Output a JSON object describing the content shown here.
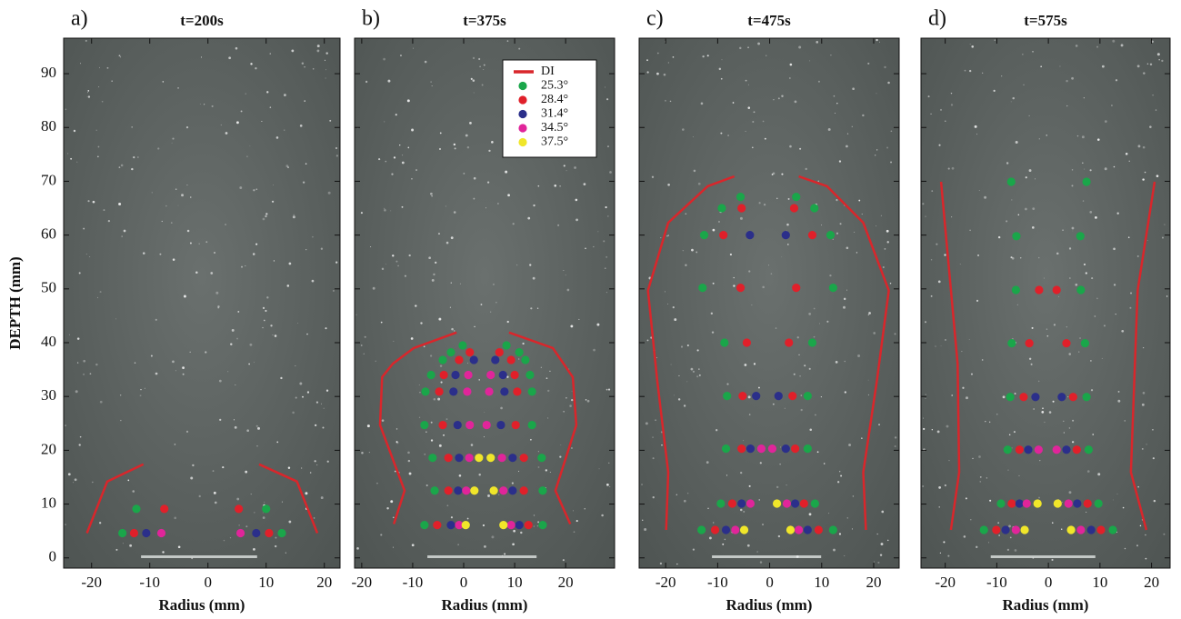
{
  "chart_data": [
    {
      "type": "scatter",
      "panel_label": "a)",
      "title": "t=200s",
      "xlabel": "Radius (mm)",
      "ylabel": "DEPTH (mm)",
      "xlim": [
        -24.8,
        22.7
      ],
      "ylim": [
        -1.9,
        96.6
      ],
      "xticks": [
        -20,
        -10,
        0,
        10,
        20
      ],
      "yticks": [
        0,
        10,
        20,
        30,
        40,
        50,
        60,
        70,
        80,
        90
      ],
      "series": [
        {
          "type": "line",
          "color": "#d9262b",
          "x": [
            -20.8,
            -17.3,
            -11.1,
            null,
            8.8,
            15.3,
            18.8
          ],
          "values": [
            4.6,
            14.2,
            17.4,
            null,
            17.4,
            14.2,
            4.6
          ]
        },
        {
          "color": "#1aa64a",
          "x": [
            -12.3,
            10,
            -14.7,
            12.7
          ],
          "values": [
            9.1,
            9.1,
            4.6,
            4.6
          ]
        },
        {
          "color": "#e0202a",
          "x": [
            -7.5,
            5.3,
            -12.7,
            10.5
          ],
          "values": [
            9.1,
            9.1,
            4.6,
            4.6
          ]
        },
        {
          "color": "#2b2f8a",
          "x": [
            -10.6,
            8.3
          ],
          "values": [
            4.6,
            4.6
          ]
        },
        {
          "color": "#e0259a",
          "x": [
            -8.0,
            5.6
          ],
          "values": [
            4.6,
            4.6
          ]
        }
      ]
    },
    {
      "type": "scatter",
      "panel_label": "b)",
      "title": "t=375s",
      "xlabel": "Radius (mm)",
      "legend": "upper right",
      "xlim": [
        -21.4,
        29.6
      ],
      "ylim": [
        -1.9,
        96.6
      ],
      "xticks": [
        -20,
        -10,
        0,
        10,
        20
      ],
      "yticks": [
        0,
        10,
        20,
        30,
        40,
        50,
        60,
        70,
        80,
        90
      ],
      "series": [
        {
          "type": "line",
          "name": "DI",
          "color": "#d9262b",
          "x": [
            -13.7,
            -11.6,
            -16.4,
            -16,
            -13.9,
            -9.8,
            -1.4,
            null,
            8.9,
            17.5,
            21.4,
            22.1,
            18,
            20.9
          ],
          "values": [
            6.3,
            12.5,
            24.7,
            33.6,
            36.1,
            39,
            41.9,
            null,
            41.9,
            39,
            33.6,
            24.7,
            12.5,
            6.3
          ]
        },
        {
          "name": "25.3°",
          "color": "#1aa64a",
          "x": [
            -0.2,
            8.4,
            -2.5,
            10.9,
            -4.1,
            12.1,
            -6.4,
            13,
            -7.5,
            13.4,
            -7.7,
            13.4,
            -6.1,
            15.3,
            -5.7,
            15.5,
            -7.7,
            15.5
          ],
          "values": [
            39.5,
            39.5,
            38.2,
            38.2,
            36.8,
            36.8,
            34,
            34,
            30.9,
            30.9,
            24.7,
            24.7,
            18.6,
            18.6,
            12.5,
            12.5,
            6.1,
            6.1
          ]
        },
        {
          "name": "28.4°",
          "color": "#e0202a",
          "x": [
            1.2,
            7,
            -0.9,
            9.3,
            -3.9,
            10,
            -4.8,
            10.5,
            -4.1,
            10.2,
            -3,
            11.8,
            -3,
            11.8,
            -5.2,
            12.7
          ],
          "values": [
            38.2,
            38.2,
            36.8,
            36.8,
            34,
            34,
            30.9,
            30.9,
            24.7,
            24.7,
            18.6,
            18.6,
            12.5,
            12.5,
            6.1,
            6.1
          ]
        },
        {
          "name": "31.4°",
          "color": "#2b2f8a",
          "x": [
            2,
            6.2,
            -1.6,
            7.7,
            -2,
            8,
            -1.2,
            7.3,
            -0.9,
            9.6,
            -1.1,
            9.6,
            -2.5,
            10.9
          ],
          "values": [
            36.8,
            36.8,
            34,
            34,
            30.9,
            30.9,
            24.7,
            24.7,
            18.6,
            18.6,
            12.5,
            12.5,
            6.1,
            6.1
          ]
        },
        {
          "name": "34.5°",
          "color": "#e0259a",
          "x": [
            0.9,
            5.3,
            0.7,
            5,
            1.2,
            4.5,
            1.1,
            7.5,
            0.5,
            7.8,
            -0.9,
            9.3
          ],
          "values": [
            34,
            34,
            30.9,
            30.9,
            24.7,
            24.7,
            18.6,
            18.6,
            12.5,
            12.5,
            6.1,
            6.1
          ]
        },
        {
          "name": "37.5°",
          "color": "#f0e62a",
          "x": [
            3,
            5.3,
            2.1,
            5.9,
            0.4,
            7.8
          ],
          "values": [
            18.6,
            18.6,
            12.5,
            12.5,
            6.1,
            6.1
          ]
        }
      ]
    },
    {
      "type": "scatter",
      "panel_label": "c)",
      "title": "t=475s",
      "xlabel": "Radius (mm)",
      "xlim": [
        -25.1,
        24.9
      ],
      "ylim": [
        -1.9,
        96.6
      ],
      "xticks": [
        -20,
        -10,
        0,
        10,
        20
      ],
      "yticks": [
        0,
        10,
        20,
        30,
        40,
        50,
        60,
        70,
        80,
        90
      ],
      "series": [
        {
          "type": "line",
          "color": "#d9262b",
          "x": [
            -6.8,
            -11.9,
            -19.5,
            -23.4,
            -21.6,
            -19.5,
            -19.9,
            null,
            5.6,
            11,
            18,
            22.9,
            20.6,
            18,
            18.5
          ],
          "values": [
            70.9,
            69.1,
            62.3,
            49.7,
            32.8,
            15.9,
            5.2,
            null,
            70.9,
            69.1,
            62.3,
            49.7,
            32.8,
            15.9,
            5.2
          ]
        },
        {
          "color": "#1aa64a",
          "x": [
            -5.6,
            5.1,
            -9.2,
            8.6,
            -12.6,
            11.7,
            -12.9,
            12.2,
            -8.7,
            8.2,
            -8.2,
            7.3,
            -8.4,
            7.3,
            -9.4,
            8.7,
            -13.1,
            12.2
          ],
          "values": [
            67.1,
            67.1,
            65,
            65,
            60,
            60,
            50.2,
            50.2,
            40,
            40,
            30.1,
            30.1,
            20.3,
            20.3,
            10.1,
            10.1,
            5.2,
            5.2
          ]
        },
        {
          "color": "#e0202a",
          "x": [
            -5.4,
            4.7,
            -8.9,
            8.2,
            -5.6,
            5.1,
            -4.4,
            3.7,
            -5.2,
            4.4,
            -5.4,
            4.9,
            -7.2,
            6.6,
            -10.5,
            9.4
          ],
          "values": [
            65,
            65,
            60,
            60,
            50.2,
            50.2,
            40,
            40,
            30.1,
            30.1,
            20.3,
            20.3,
            10.1,
            10.1,
            5.2,
            5.2
          ]
        },
        {
          "color": "#2b2f8a",
          "x": [
            -3.8,
            3.1,
            -2.6,
            1.7,
            -3.7,
            3.1,
            -5.4,
            4.9,
            -8.4,
            7.3
          ],
          "values": [
            60,
            60,
            30.1,
            30.1,
            20.3,
            20.3,
            10.1,
            10.1,
            5.2,
            5.2
          ]
        },
        {
          "color": "#e0259a",
          "x": [
            -1.6,
            0.5,
            -3.7,
            3.3,
            -6.6,
            5.6
          ],
          "values": [
            20.3,
            20.3,
            10.1,
            10.1,
            5.2,
            5.2
          ]
        },
        {
          "color": "#f0e62a",
          "x": [
            1.4,
            -4.9,
            4.0
          ],
          "values": [
            10.1,
            5.2,
            5.2
          ]
        }
      ]
    },
    {
      "type": "scatter",
      "panel_label": "d)",
      "title": "t=575s",
      "xlabel": "Radius (mm)",
      "xlim": [
        -24.7,
        23.6
      ],
      "ylim": [
        -1.9,
        96.6
      ],
      "xticks": [
        -20,
        -10,
        0,
        10,
        20
      ],
      "yticks": [
        0,
        10,
        20,
        30,
        40,
        50,
        60,
        70,
        80,
        90
      ],
      "series": [
        {
          "type": "line",
          "color": "#d9262b",
          "x": [
            -20.8,
            -17.6,
            -17.3,
            -18.9,
            null,
            20.6,
            17.3,
            16,
            19
          ],
          "values": [
            69.9,
            36.1,
            15.9,
            5.2,
            null,
            69.9,
            49.7,
            15.9,
            5.2
          ]
        },
        {
          "color": "#1aa64a",
          "x": [
            -7.2,
            7.4,
            -6.2,
            6.2,
            -6.3,
            6.3,
            -7.1,
            7.1,
            -7.4,
            7.4,
            -7.9,
            7.8,
            -9.2,
            9.7,
            -12.5,
            12.5
          ],
          "values": [
            69.9,
            69.9,
            59.8,
            59.8,
            49.8,
            49.8,
            39.9,
            39.9,
            29.9,
            29.9,
            20.1,
            20.1,
            10.1,
            10.1,
            5.2,
            5.2
          ]
        },
        {
          "color": "#e0202a",
          "x": [
            -1.8,
            1.6,
            -3.7,
            3.5,
            -4.8,
            4.8,
            -5.6,
            5.5,
            -7.1,
            7.6,
            -10.1,
            10.2
          ],
          "values": [
            49.8,
            49.8,
            39.9,
            39.9,
            29.9,
            29.9,
            20.1,
            20.1,
            10.1,
            10.1,
            5.2,
            5.2
          ]
        },
        {
          "color": "#2b2f8a",
          "x": [
            -2.5,
            2.6,
            -3.9,
            3.5,
            -5.6,
            5.6,
            -8.3,
            8.3
          ],
          "values": [
            29.9,
            29.9,
            20.1,
            20.1,
            10.1,
            10.1,
            5.2,
            5.2
          ]
        },
        {
          "color": "#e0259a",
          "x": [
            -1.9,
            1.6,
            -4.2,
            3.9,
            -6.3,
            6.3
          ],
          "values": [
            20.1,
            20.1,
            10.1,
            10.1,
            5.2,
            5.2
          ]
        },
        {
          "color": "#f0e62a",
          "x": [
            -2.1,
            1.8,
            -4.6,
            4.4
          ],
          "values": [
            10.1,
            10.1,
            5.2,
            5.2
          ]
        }
      ]
    }
  ]
}
